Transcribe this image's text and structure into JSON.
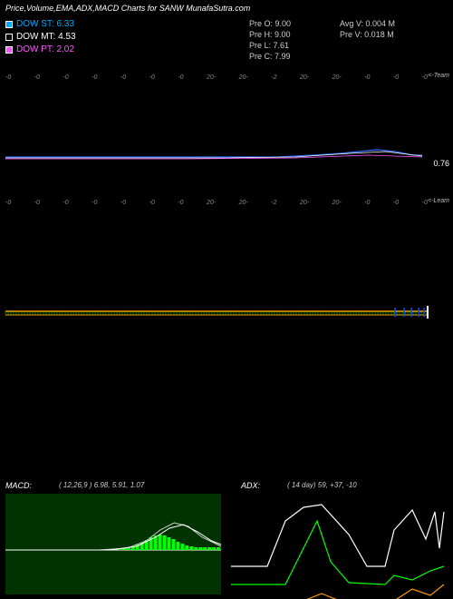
{
  "title": "Price,Volume,EMA,ADX,MACD Charts for SANW MunafaSutra.com",
  "legend": [
    {
      "label": "DOW ST: 6.33",
      "fill": "#00aaff",
      "border": "#ffffff",
      "text_color": "#00aaff"
    },
    {
      "label": "DOW MT: 4.53",
      "fill": "#000000",
      "border": "#ffffff",
      "text_color": "#ffffff"
    },
    {
      "label": "DOW PT: 2.02",
      "fill": "#ff55ff",
      "border": "#ffffff",
      "text_color": "#ff55ff"
    }
  ],
  "ohlc_col1": [
    {
      "k": "Pre   O:",
      "v": "9.00"
    },
    {
      "k": "Pre   H:",
      "v": "9.00"
    },
    {
      "k": "Pre   L:",
      "v": "7.61"
    },
    {
      "k": "Pre   C:",
      "v": "7.99"
    }
  ],
  "ohlc_col2": [
    {
      "k": "Avg V:",
      "v": "0.004  M"
    },
    {
      "k": "Pre   V:",
      "v": "0.018 M"
    }
  ],
  "dates": [
    "-0",
    "-0",
    "-0",
    "-0",
    "-0",
    "-0",
    "-0",
    "20-",
    "20-",
    "-2",
    "20-",
    "20-",
    "-0",
    "-0",
    "-0"
  ],
  "axis_top_label": "<-Team",
  "axis_mid_label": "<-Leam",
  "price_last_label": "0.76",
  "price_chart": {
    "type": "line",
    "xlim": [
      0,
      460
    ],
    "ylim": [
      0,
      100
    ],
    "background": "#000000",
    "series": [
      {
        "name": "blue",
        "color": "#3070ff",
        "width": 1.2,
        "points": [
          [
            0,
            78
          ],
          [
            60,
            78
          ],
          [
            120,
            78
          ],
          [
            180,
            78
          ],
          [
            240,
            78
          ],
          [
            300,
            78
          ],
          [
            340,
            76
          ],
          [
            370,
            74
          ],
          [
            390,
            72
          ],
          [
            410,
            70
          ],
          [
            430,
            72
          ],
          [
            450,
            76
          ],
          [
            460,
            76
          ]
        ]
      },
      {
        "name": "white",
        "color": "#ffffff",
        "width": 0.8,
        "points": [
          [
            0,
            79
          ],
          [
            120,
            79
          ],
          [
            240,
            79
          ],
          [
            320,
            78
          ],
          [
            380,
            74
          ],
          [
            420,
            72
          ],
          [
            460,
            77
          ]
        ]
      },
      {
        "name": "pink",
        "color": "#ff55ff",
        "width": 0.8,
        "points": [
          [
            0,
            80
          ],
          [
            200,
            80
          ],
          [
            320,
            79
          ],
          [
            400,
            76
          ],
          [
            460,
            78
          ]
        ]
      }
    ]
  },
  "candle_chart": {
    "type": "line",
    "background": "#000000",
    "series_top": {
      "color": "#ff9900",
      "width": 1.6
    },
    "series_fill": {
      "color": "#00ff00",
      "width": 0.5
    },
    "blue_marks": {
      "color": "#0050ff"
    },
    "ytick_color": "#ffffff"
  },
  "macd_panel": {
    "label": "MACD:",
    "params": "( 12,26,9 ) 6.98,  5.91,  1.07",
    "type": "macd",
    "background": "#003300",
    "hist_color": "#00ff00",
    "signal_color": "#ffffff",
    "macd_color": "#cccccc",
    "zero_color": "#ffffff",
    "hist": [
      0,
      0,
      0,
      0,
      0,
      0,
      0,
      0,
      0,
      0,
      0,
      0,
      0,
      0,
      0,
      0,
      0,
      0,
      0,
      0,
      0,
      0,
      0,
      0,
      0,
      1,
      2,
      3,
      4,
      6,
      8,
      11,
      14,
      16,
      17,
      16,
      14,
      12,
      9,
      7,
      5,
      4,
      3,
      3,
      3,
      3,
      3,
      3
    ],
    "macd_line": [
      [
        0,
        62
      ],
      [
        200,
        62
      ],
      [
        260,
        60
      ],
      [
        300,
        52
      ],
      [
        330,
        40
      ],
      [
        360,
        32
      ],
      [
        390,
        36
      ],
      [
        420,
        48
      ],
      [
        460,
        58
      ]
    ],
    "signal_line": [
      [
        0,
        62
      ],
      [
        220,
        62
      ],
      [
        280,
        58
      ],
      [
        320,
        48
      ],
      [
        350,
        38
      ],
      [
        380,
        34
      ],
      [
        410,
        42
      ],
      [
        440,
        52
      ],
      [
        460,
        56
      ]
    ]
  },
  "adx_panel": {
    "label": "ADX:",
    "params": "( 14   day)  59,  +37,  -10",
    "type": "adx",
    "background": "#000000",
    "adx_color": "#ffffff",
    "pdi_color": "#00ff00",
    "ndi_color": "#ff9900",
    "adx_line": [
      [
        0,
        80
      ],
      [
        40,
        80
      ],
      [
        60,
        30
      ],
      [
        80,
        15
      ],
      [
        100,
        12
      ],
      [
        130,
        45
      ],
      [
        150,
        80
      ],
      [
        170,
        80
      ],
      [
        180,
        40
      ],
      [
        200,
        18
      ],
      [
        215,
        50
      ],
      [
        225,
        20
      ],
      [
        230,
        60
      ],
      [
        235,
        20
      ]
    ],
    "pdi_line": [
      [
        0,
        100
      ],
      [
        60,
        100
      ],
      [
        80,
        60
      ],
      [
        95,
        30
      ],
      [
        110,
        75
      ],
      [
        130,
        98
      ],
      [
        170,
        100
      ],
      [
        180,
        90
      ],
      [
        200,
        95
      ],
      [
        220,
        85
      ],
      [
        235,
        80
      ]
    ],
    "ndi_line": [
      [
        0,
        118
      ],
      [
        80,
        118
      ],
      [
        100,
        110
      ],
      [
        120,
        118
      ],
      [
        180,
        118
      ],
      [
        200,
        105
      ],
      [
        220,
        112
      ],
      [
        235,
        100
      ]
    ]
  }
}
